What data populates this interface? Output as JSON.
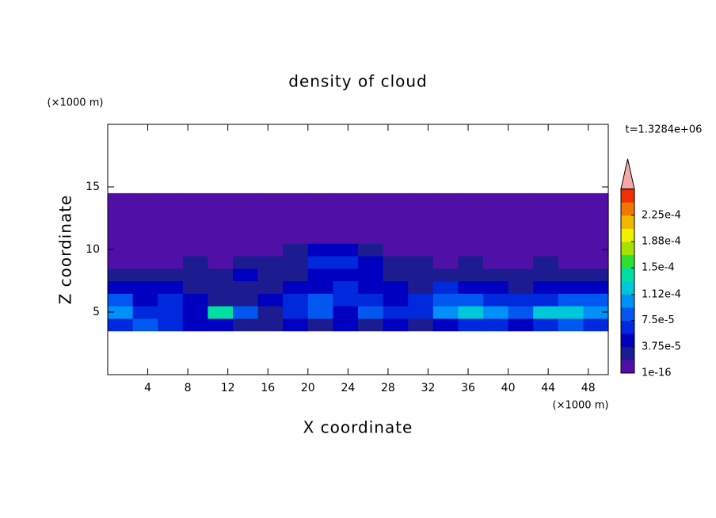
{
  "chart_data": {
    "type": "contour",
    "title": "density of cloud",
    "x_label": "X coordinate",
    "y_label": "Z coordinate",
    "x_unit": "(×1000 m)",
    "y_unit": "(×1000 m)",
    "annotation": "t=1.3284e+06",
    "xlim": [
      0,
      50
    ],
    "xticks": [
      4,
      8,
      12,
      16,
      20,
      24,
      28,
      32,
      36,
      40,
      44,
      48
    ],
    "ylim": [
      0,
      20
    ],
    "yticks": [
      5,
      10,
      15
    ],
    "x": [
      1.25,
      3.75,
      6.25,
      8.75,
      11.25,
      13.75,
      16.25,
      18.75,
      21.25,
      23.75,
      26.25,
      28.75,
      31.25,
      33.75,
      36.25,
      38.75,
      41.25,
      43.75,
      46.25,
      48.75
    ],
    "y": [
      4,
      5,
      6,
      7,
      8,
      9,
      10,
      11,
      12,
      13,
      14
    ],
    "values": [
      [
        6e-05,
        8e-05,
        7e-05,
        5e-05,
        4e-05,
        2e-05,
        2e-05,
        4e-05,
        2e-05,
        5e-05,
        3e-05,
        4e-05,
        3e-05,
        5e-05,
        7e-05,
        6e-05,
        4e-05,
        7e-05,
        8e-05,
        6e-05
      ],
      [
        0.0001,
        7e-05,
        6e-05,
        5e-05,
        0.00014,
        8e-05,
        2e-05,
        6e-05,
        9e-05,
        5e-05,
        8e-05,
        6e-05,
        7e-05,
        0.00011,
        0.000115,
        0.0001,
        8e-05,
        0.00012,
        0.000125,
        0.000105
      ],
      [
        8e-05,
        5e-05,
        6e-05,
        4e-05,
        2e-05,
        3e-05,
        4e-05,
        7e-05,
        8e-05,
        7e-05,
        6e-05,
        5e-05,
        6e-05,
        9e-05,
        8e-05,
        7e-05,
        6e-05,
        7e-05,
        8e-05,
        8e-05
      ],
      [
        5e-05,
        4e-05,
        4e-05,
        3e-05,
        2e-05,
        3e-05,
        2e-05,
        4e-05,
        5e-05,
        6e-05,
        5e-05,
        4e-05,
        3e-05,
        6e-05,
        5e-05,
        4e-05,
        3e-05,
        4e-05,
        5e-05,
        4e-05
      ],
      [
        2e-05,
        2e-05,
        3e-05,
        2e-05,
        2e-05,
        4e-05,
        2e-05,
        3e-05,
        4e-05,
        5e-05,
        4e-05,
        3e-05,
        2e-05,
        2e-05,
        3e-05,
        2e-05,
        2e-05,
        2e-05,
        2e-05,
        2e-05
      ],
      [
        1e-06,
        1e-06,
        1e-06,
        2e-05,
        1e-06,
        2e-05,
        2e-05,
        3e-05,
        6e-05,
        6e-05,
        4e-05,
        2e-05,
        2e-05,
        1e-06,
        2e-05,
        1e-06,
        1e-06,
        2e-05,
        1e-06,
        1e-06
      ],
      [
        1e-06,
        1e-06,
        1e-06,
        1e-06,
        1e-06,
        1e-06,
        1e-06,
        2e-05,
        4e-05,
        4e-05,
        3e-05,
        1e-06,
        1e-06,
        1e-06,
        1e-06,
        1e-06,
        1e-06,
        1e-06,
        1e-06,
        1e-06
      ],
      [
        1e-06,
        1e-06,
        1e-06,
        1e-06,
        1e-06,
        1e-06,
        1e-06,
        1e-06,
        1e-06,
        1e-06,
        1e-06,
        1e-06,
        1e-06,
        1e-06,
        1e-06,
        1e-06,
        1e-06,
        1e-06,
        1e-06,
        1e-06
      ],
      [
        1e-06,
        1e-06,
        1e-06,
        1e-06,
        1e-06,
        1e-06,
        1e-06,
        1e-06,
        1e-06,
        1e-06,
        1e-06,
        1e-06,
        1e-06,
        1e-06,
        1e-06,
        1e-06,
        1e-06,
        1e-06,
        1e-06,
        1e-06
      ],
      [
        1e-06,
        1e-06,
        1e-06,
        1e-06,
        1e-06,
        1e-06,
        1e-06,
        1e-06,
        1e-06,
        1e-06,
        1e-06,
        1e-06,
        1e-06,
        1e-06,
        1e-06,
        1e-06,
        1e-06,
        1e-06,
        1e-06,
        1e-06
      ],
      [
        1e-06,
        1e-06,
        1e-06,
        1e-06,
        1e-06,
        1e-06,
        1e-06,
        1e-06,
        1e-06,
        1e-06,
        1e-06,
        1e-06,
        1e-06,
        1e-06,
        1e-06,
        1e-06,
        1e-06,
        1e-06,
        1e-06,
        1e-06
      ]
    ],
    "colorbar": {
      "levels": [
        1e-16,
        1.875e-05,
        3.75e-05,
        5.625e-05,
        7.5e-05,
        9.375e-05,
        0.0001125,
        0.00013125,
        0.00015,
        0.00016875,
        0.0001875,
        0.00020625,
        0.000225,
        0.00024375
      ],
      "colors": [
        "#5010a8",
        "#1c1c90",
        "#0000c0",
        "#0028dc",
        "#0058f0",
        "#0090f8",
        "#00c8d8",
        "#00e0a0",
        "#30e030",
        "#a8e000",
        "#f0f000",
        "#f0b800",
        "#f07800",
        "#f03000"
      ],
      "extend_color": "#f4a8a8",
      "ticks": [
        1e-16,
        {
          "value": 3.75e-05,
          "label": "3.75e-5"
        },
        {
          "value": 7.5e-05,
          "label": "7.5e-5"
        },
        {
          "value": 0.000112,
          "label": "1.12e-4"
        },
        {
          "value": 0.00015,
          "label": "1.5e-4"
        },
        {
          "value": 0.0001875,
          "label": "1.88e-4"
        },
        {
          "value": 0.000225,
          "label": "2.25e-4"
        }
      ]
    }
  }
}
